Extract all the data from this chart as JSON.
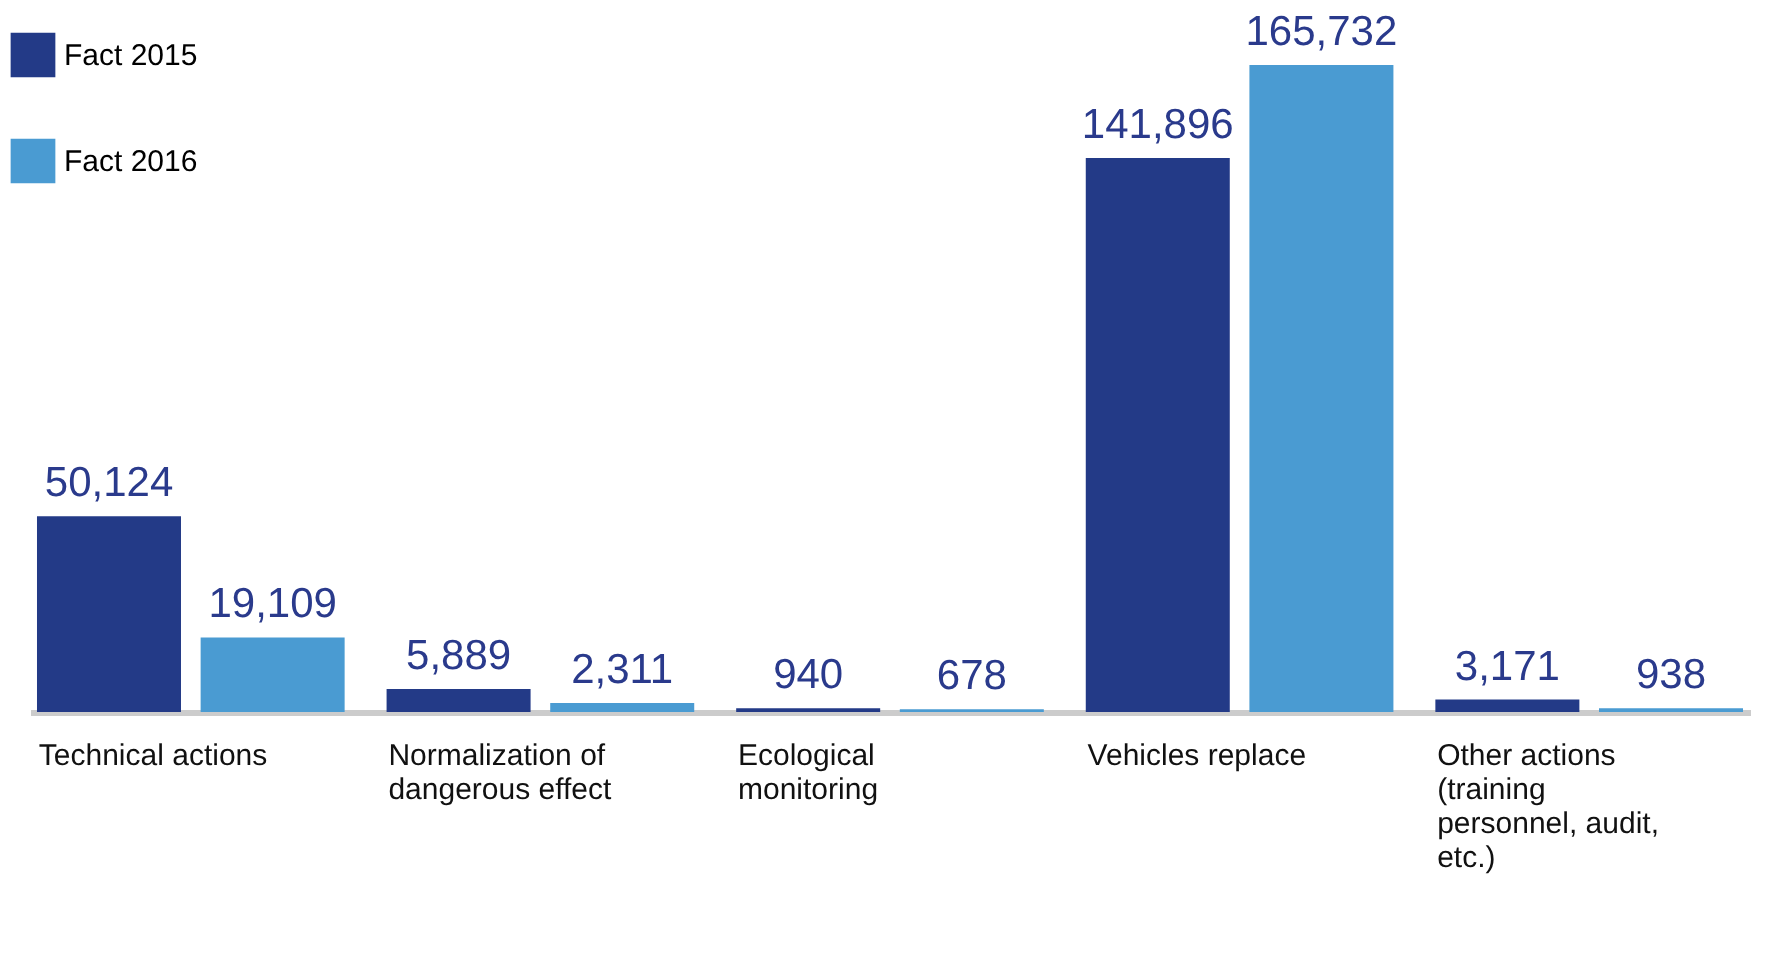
{
  "chart_data": {
    "type": "bar",
    "categories": [
      "Technical actions",
      "Normalization of dangerous effect",
      "Ecological monitoring",
      "Vehicles replace",
      "Other actions (training personnel, audit, etc.)"
    ],
    "series": [
      {
        "name": "Fact 2015",
        "color": "#233a87",
        "values": [
          50124,
          5889,
          940,
          141896,
          3171
        ],
        "value_labels": [
          "50,124",
          "5,889",
          "940",
          "141,896",
          "3,171"
        ]
      },
      {
        "name": "Fact 2016",
        "color": "#4a9bd2",
        "values": [
          19109,
          2311,
          678,
          165732,
          938
        ],
        "value_labels": [
          "19,109",
          "2,311",
          "678",
          "165,732",
          "938"
        ]
      }
    ],
    "legend": "top left",
    "grid": false
  }
}
